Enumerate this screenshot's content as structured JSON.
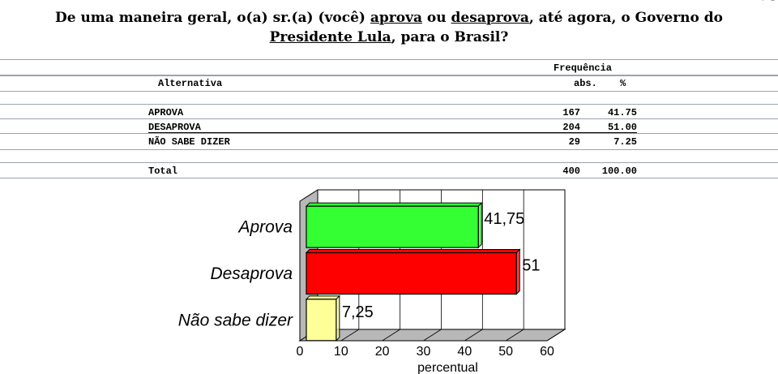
{
  "question": {
    "part1": "De uma maneira geral, o(a) sr.(a) (você) ",
    "aprova": "aprova",
    "or": " ou ",
    "desaprova": "desaprova",
    "part2": ", até agora, o Governo do",
    "presidente": "Presidente Lula",
    "part3": ", para o Brasil?"
  },
  "corner_mark": "F  L",
  "table": {
    "freq_header": "Frequência",
    "alt_header": "Alternativa",
    "abs_header": "abs.",
    "pct_header": "%",
    "rows": [
      {
        "label": "APROVA",
        "abs": "167",
        "pct": "41.75"
      },
      {
        "label": "DESAPROVA",
        "abs": "204",
        "pct": "51.00"
      },
      {
        "label": "NÃO SABE DIZER",
        "abs": "29",
        "pct": "7.25"
      }
    ],
    "total": {
      "label": "Total",
      "abs": "400",
      "pct": "100.00"
    }
  },
  "chart_data": {
    "type": "bar",
    "orientation": "horizontal",
    "categories": [
      "Aprova",
      "Desaprova",
      "Não sabe dizer"
    ],
    "values": [
      41.75,
      51,
      7.25
    ],
    "value_labels": [
      "41,75",
      "51",
      "7,25"
    ],
    "colors": [
      "#33ff33",
      "#ff0000",
      "#ffff99"
    ],
    "xlabel": "percentual",
    "xlim": [
      0,
      60
    ],
    "xticks": [
      0,
      10,
      20,
      30,
      40,
      50,
      60
    ],
    "grid": true,
    "style": "3d"
  }
}
